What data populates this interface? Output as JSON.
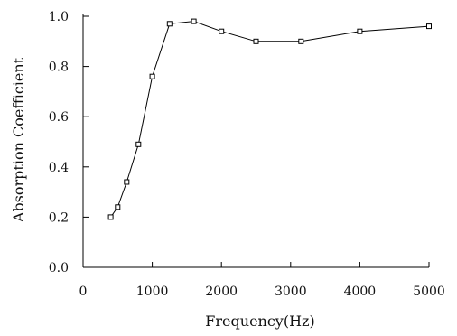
{
  "chart_data": {
    "type": "line",
    "title": "",
    "xlabel": "Frequency(Hz)",
    "ylabel": "Absorption Coefficient",
    "xlim": [
      0,
      5000
    ],
    "ylim": [
      0.0,
      1.0
    ],
    "xticks": [
      0,
      1000,
      2000,
      3000,
      4000,
      5000
    ],
    "xtick_labels": [
      "0",
      "1000",
      "2000",
      "3000",
      "4000",
      "5000"
    ],
    "yticks": [
      0.0,
      0.2,
      0.4,
      0.6,
      0.8,
      1.0
    ],
    "ytick_labels": [
      "0.0",
      "0.2",
      "0.4",
      "0.6",
      "0.8",
      "1.0"
    ],
    "grid": false,
    "marker": "square",
    "colors": {
      "line": "#000000",
      "axis": "#000000"
    },
    "series": [
      {
        "x": [
          400,
          500,
          630,
          800,
          1000,
          1250,
          1600,
          2000,
          2500,
          3150,
          4000,
          5000
        ],
        "y": [
          0.2,
          0.24,
          0.34,
          0.49,
          0.76,
          0.97,
          0.98,
          0.94,
          0.9,
          0.9,
          0.94,
          0.96
        ]
      }
    ]
  }
}
